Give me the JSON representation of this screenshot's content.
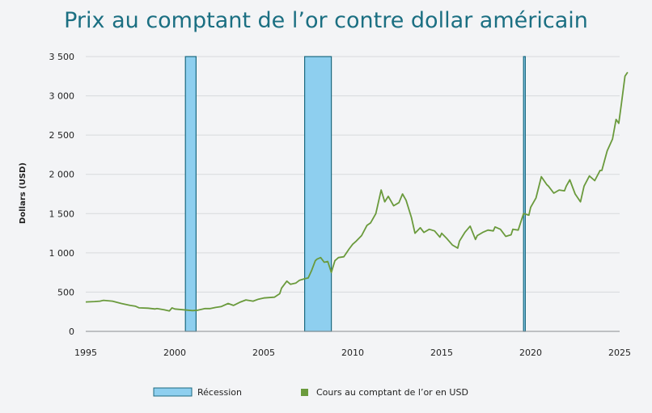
{
  "chart_data": {
    "type": "line",
    "title": "Prix au comptant de l’or contre dollar américain",
    "ylabel": "Dollars (USD)",
    "xlabel": "",
    "xlim": [
      1995,
      2025
    ],
    "ylim": [
      0,
      3500
    ],
    "x_ticks": [
      1995,
      2000,
      2005,
      2010,
      2015,
      2020,
      2025
    ],
    "y_ticks": [
      0,
      500,
      1000,
      1500,
      2000,
      2500,
      3000,
      3500
    ],
    "y_tick_labels": [
      "0",
      "500",
      "1 000",
      "1 500",
      "2 000",
      "2 500",
      "3 000",
      "3 500"
    ],
    "grid": "horizontal",
    "legend_position": "bottom",
    "recession_periods": [
      {
        "start": 2000.6,
        "end": 2001.2
      },
      {
        "start": 2007.3,
        "end": 2008.8
      },
      {
        "start": 2019.6,
        "end": 2019.7
      }
    ],
    "series": [
      {
        "name": "Cours au comptant de l’or en USD",
        "color": "#6a9a3c",
        "points": [
          [
            1995.0,
            375
          ],
          [
            1995.5,
            380
          ],
          [
            1995.8,
            385
          ],
          [
            1996.0,
            395
          ],
          [
            1996.5,
            385
          ],
          [
            1997.0,
            355
          ],
          [
            1997.5,
            330
          ],
          [
            1997.8,
            320
          ],
          [
            1998.0,
            300
          ],
          [
            1998.5,
            295
          ],
          [
            1998.9,
            285
          ],
          [
            1999.0,
            290
          ],
          [
            1999.4,
            275
          ],
          [
            1999.7,
            260
          ],
          [
            1999.85,
            300
          ],
          [
            2000.0,
            285
          ],
          [
            2000.5,
            275
          ],
          [
            2001.0,
            265
          ],
          [
            2001.3,
            270
          ],
          [
            2001.7,
            290
          ],
          [
            2002.0,
            290
          ],
          [
            2002.3,
            305
          ],
          [
            2002.6,
            315
          ],
          [
            2003.0,
            355
          ],
          [
            2003.3,
            330
          ],
          [
            2003.7,
            375
          ],
          [
            2004.0,
            400
          ],
          [
            2004.4,
            385
          ],
          [
            2004.7,
            410
          ],
          [
            2005.0,
            425
          ],
          [
            2005.3,
            430
          ],
          [
            2005.6,
            435
          ],
          [
            2005.9,
            480
          ],
          [
            2006.0,
            550
          ],
          [
            2006.3,
            640
          ],
          [
            2006.5,
            600
          ],
          [
            2006.8,
            615
          ],
          [
            2007.0,
            650
          ],
          [
            2007.3,
            670
          ],
          [
            2007.5,
            680
          ],
          [
            2007.7,
            780
          ],
          [
            2007.9,
            900
          ],
          [
            2008.0,
            920
          ],
          [
            2008.2,
            940
          ],
          [
            2008.4,
            880
          ],
          [
            2008.6,
            890
          ],
          [
            2008.8,
            750
          ],
          [
            2009.0,
            900
          ],
          [
            2009.2,
            940
          ],
          [
            2009.5,
            950
          ],
          [
            2009.8,
            1050
          ],
          [
            2010.0,
            1110
          ],
          [
            2010.2,
            1150
          ],
          [
            2010.5,
            1220
          ],
          [
            2010.8,
            1350
          ],
          [
            2011.0,
            1380
          ],
          [
            2011.3,
            1500
          ],
          [
            2011.6,
            1800
          ],
          [
            2011.8,
            1650
          ],
          [
            2012.0,
            1720
          ],
          [
            2012.3,
            1600
          ],
          [
            2012.6,
            1640
          ],
          [
            2012.8,
            1750
          ],
          [
            2013.0,
            1670
          ],
          [
            2013.3,
            1450
          ],
          [
            2013.5,
            1250
          ],
          [
            2013.8,
            1320
          ],
          [
            2014.0,
            1260
          ],
          [
            2014.3,
            1300
          ],
          [
            2014.6,
            1280
          ],
          [
            2014.9,
            1200
          ],
          [
            2015.0,
            1250
          ],
          [
            2015.3,
            1180
          ],
          [
            2015.6,
            1100
          ],
          [
            2015.9,
            1060
          ],
          [
            2016.0,
            1150
          ],
          [
            2016.3,
            1260
          ],
          [
            2016.6,
            1340
          ],
          [
            2016.9,
            1170
          ],
          [
            2017.0,
            1220
          ],
          [
            2017.3,
            1260
          ],
          [
            2017.6,
            1290
          ],
          [
            2017.9,
            1280
          ],
          [
            2018.0,
            1330
          ],
          [
            2018.3,
            1300
          ],
          [
            2018.6,
            1210
          ],
          [
            2018.9,
            1230
          ],
          [
            2019.0,
            1300
          ],
          [
            2019.3,
            1290
          ],
          [
            2019.6,
            1500
          ],
          [
            2019.9,
            1480
          ],
          [
            2020.0,
            1580
          ],
          [
            2020.3,
            1700
          ],
          [
            2020.6,
            1970
          ],
          [
            2020.9,
            1870
          ],
          [
            2021.0,
            1850
          ],
          [
            2021.3,
            1760
          ],
          [
            2021.6,
            1800
          ],
          [
            2021.9,
            1790
          ],
          [
            2022.0,
            1850
          ],
          [
            2022.2,
            1930
          ],
          [
            2022.5,
            1750
          ],
          [
            2022.8,
            1650
          ],
          [
            2023.0,
            1850
          ],
          [
            2023.3,
            1980
          ],
          [
            2023.6,
            1920
          ],
          [
            2023.9,
            2050
          ],
          [
            2024.0,
            2050
          ],
          [
            2024.3,
            2300
          ],
          [
            2024.6,
            2450
          ],
          [
            2024.8,
            2700
          ],
          [
            2024.95,
            2650
          ],
          [
            2025.1,
            2900
          ],
          [
            2025.3,
            3250
          ],
          [
            2025.45,
            3300
          ]
        ]
      }
    ],
    "legend": {
      "recession_label": "Récession",
      "gold_label": "Cours au comptant de l’or en USD"
    },
    "colors": {
      "recession_fill": "#8ecfef",
      "recession_stroke": "#1c6a80",
      "gold_line": "#6a9a3c",
      "grid": "#d7d9dc",
      "axis": "#8a8d90",
      "title": "#1b6f82"
    }
  }
}
